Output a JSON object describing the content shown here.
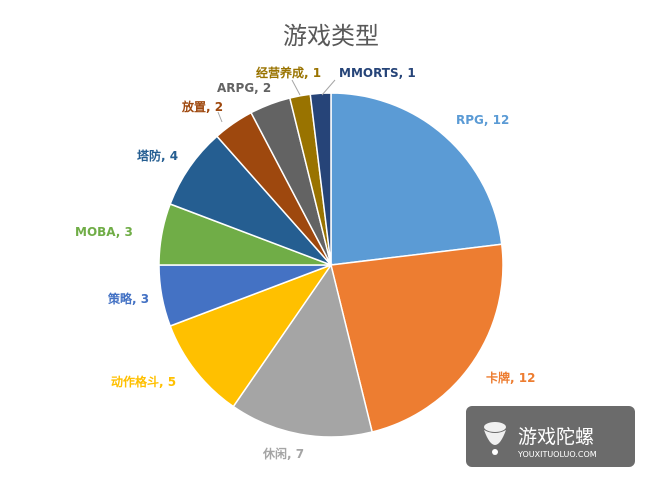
{
  "chart_data": {
    "type": "pie",
    "title": "游戏类型",
    "slices": [
      {
        "name": "RPG",
        "value": 12,
        "color": "#5B9BD5",
        "label_color": "#5B9BD5"
      },
      {
        "name": "卡牌",
        "value": 12,
        "color": "#ED7D31",
        "label_color": "#ED7D31"
      },
      {
        "name": "休闲",
        "value": 7,
        "color": "#A5A5A5",
        "label_color": "#A5A5A5"
      },
      {
        "name": "动作格斗",
        "value": 5,
        "color": "#FFC000",
        "label_color": "#FFC000"
      },
      {
        "name": "策略",
        "value": 3,
        "color": "#4472C4",
        "label_color": "#4472C4"
      },
      {
        "name": "MOBA",
        "value": 3,
        "color": "#70AD47",
        "label_color": "#70AD47"
      },
      {
        "name": "塔防",
        "value": 4,
        "color": "#255E91",
        "label_color": "#255E91"
      },
      {
        "name": "放置",
        "value": 2,
        "color": "#9E480E",
        "label_color": "#9E480E"
      },
      {
        "name": "ARPG",
        "value": 2,
        "color": "#636363",
        "label_color": "#636363"
      },
      {
        "name": "经营养成",
        "value": 1,
        "color": "#997300",
        "label_color": "#997300"
      },
      {
        "name": "MMORTS",
        "value": 1,
        "color": "#264478",
        "label_color": "#264478"
      }
    ],
    "legend": "none"
  },
  "watermark": {
    "brand": "游戏陀螺",
    "url": "YOUXITUOLUO.COM"
  }
}
